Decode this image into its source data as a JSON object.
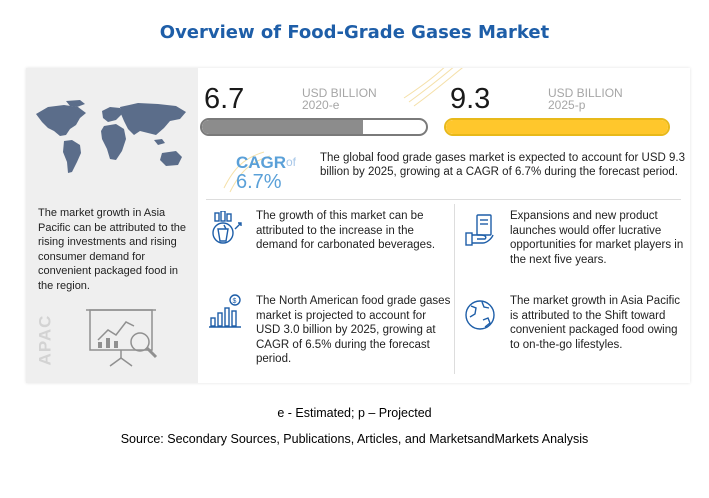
{
  "title": "Overview of Food-Grade Gases Market",
  "estimate_2020": {
    "value": "6.7",
    "unit": "USD BILLION",
    "year": "2020-e",
    "bar_fill_fraction": 0.72
  },
  "projection_2025": {
    "value": "9.3",
    "unit": "USD BILLION",
    "year": "2025-p",
    "bar_fill_fraction": 1.0
  },
  "cagr": {
    "label": "CAGR",
    "of_text": "of",
    "value": "6.7%",
    "description": "The global food grade gases market is expected to account for USD 9.3 billion  by 2025, growing at a CAGR of 6.7% during the forecast period."
  },
  "left_panel": {
    "region_label": "APAC",
    "text": "The market growth in Asia Pacific can be attributed to the rising investments and rising consumer demand for convenient packaged food in the region."
  },
  "cards": [
    {
      "icon": "carbonated-drink-chart-icon",
      "text": "The growth of this market can be attributed to the increase in the demand for carbonated beverages."
    },
    {
      "icon": "product-launch-icon",
      "text": "Expansions and new product launches would offer lucrative opportunities for market players in the next five years."
    },
    {
      "icon": "revenue-bar-chart-icon",
      "text": "The North American food grade gases market is projected to account for USD 3.0 billion by 2025, growing at CAGR of 6.5% during the forecast period."
    },
    {
      "icon": "globe-icon",
      "text": "The market growth in Asia Pacific is attributed to the Shift toward convenient packaged food owing to on-the-go lifestyles."
    }
  ],
  "footnote": "e - Estimated; p – Projected",
  "source": "Source: Secondary Sources, Publications, Articles, and MarketsandMarkets Analysis",
  "colors": {
    "title": "#1e5ea8",
    "accent_blue": "#5aa0d8",
    "yellow": "#ffc72c",
    "gray": "#8c8c8c",
    "map": "#5b6d8a"
  }
}
